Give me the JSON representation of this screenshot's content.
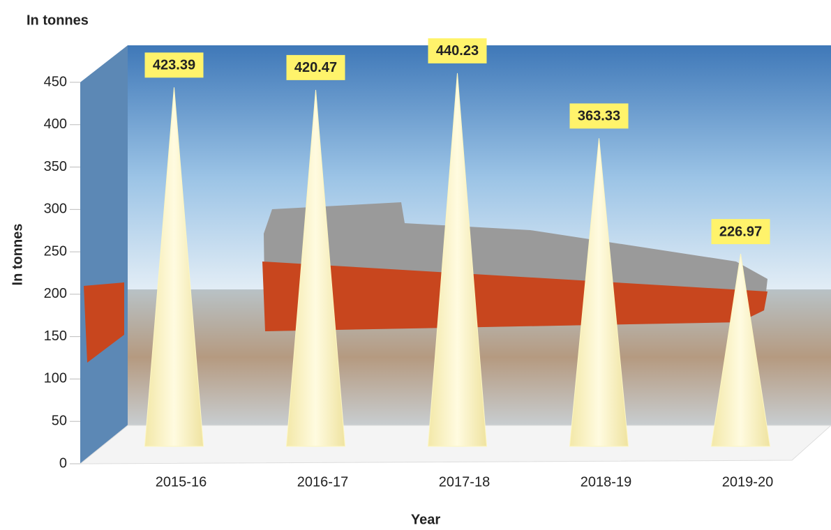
{
  "chart_data": {
    "type": "cone-bar",
    "header": "In tonnes",
    "y_label": "In tonnes",
    "x_label": "Year",
    "categories": [
      "2015-16",
      "2016-17",
      "2017-18",
      "2018-19",
      "2019-20"
    ],
    "values": [
      423.39,
      420.47,
      440.23,
      363.33,
      226.97
    ],
    "color": "#fdf6c0",
    "label_color": "#fff36b",
    "ylim": [
      0,
      450
    ],
    "yticks": [
      0,
      50,
      100,
      150,
      200,
      250,
      300,
      350,
      400,
      450
    ]
  }
}
